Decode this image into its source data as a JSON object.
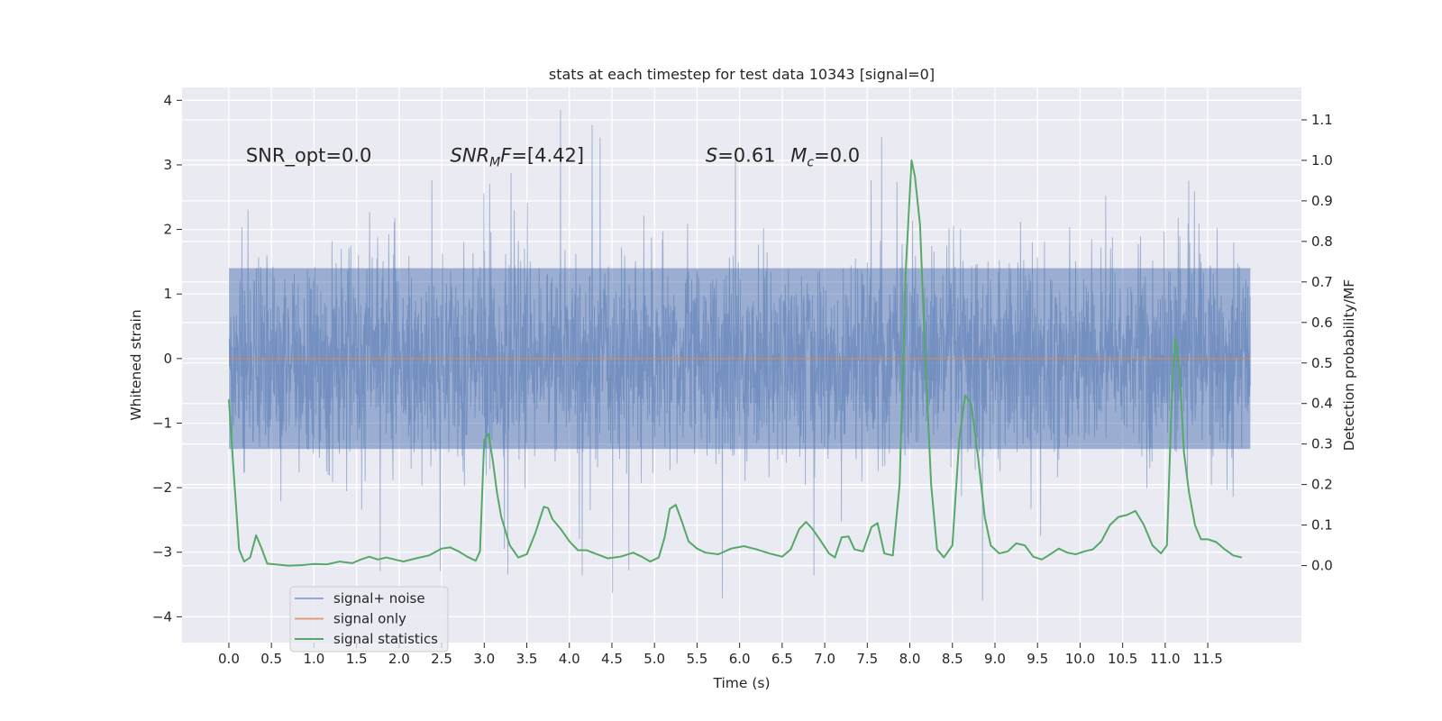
{
  "chart_data": {
    "type": "line",
    "title": "stats at each timestep for test data 10343 [signal=0]",
    "xlabel": "Time (s)",
    "ylabel": "Whitened strain",
    "y2label": "Detection probability/MF",
    "xlim": [
      -0.55,
      12.6
    ],
    "ylim": [
      -4.4,
      4.2
    ],
    "y2lim": [
      -0.19,
      1.18
    ],
    "x_ticks": [
      0.0,
      0.5,
      1.0,
      1.5,
      2.0,
      2.5,
      3.0,
      3.5,
      4.0,
      4.5,
      5.0,
      5.5,
      6.0,
      6.5,
      7.0,
      7.5,
      8.0,
      8.5,
      9.0,
      9.5,
      10.0,
      10.5,
      11.0,
      11.5
    ],
    "x_tick_labels": [
      "0.0",
      "0.5",
      "1.0",
      "1.5",
      "2.0",
      "2.5",
      "3.0",
      "3.5",
      "4.0",
      "4.5",
      "5.0",
      "5.5",
      "6.0",
      "6.5",
      "7.0",
      "7.5",
      "8.0",
      "8.5",
      "9.0",
      "9.5",
      "10.0",
      "10.5",
      "11.0",
      "11.5"
    ],
    "y_ticks": [
      -4,
      -3,
      -2,
      -1,
      0,
      1,
      2,
      3,
      4
    ],
    "y_tick_labels": [
      "−4",
      "−3",
      "−2",
      "−1",
      "0",
      "1",
      "2",
      "3",
      "4"
    ],
    "y2_ticks": [
      0.0,
      0.1,
      0.2,
      0.3,
      0.4,
      0.5,
      0.6,
      0.7,
      0.8,
      0.9,
      1.0,
      1.1
    ],
    "y2_tick_labels": [
      "0.0",
      "0.1",
      "0.2",
      "0.3",
      "0.4",
      "0.5",
      "0.6",
      "0.7",
      "0.8",
      "0.9",
      "1.0",
      "1.1"
    ],
    "grid": true,
    "legend_position": "lower-left",
    "annotations": [
      {
        "text": "SNR_opt=0.0",
        "x": 0.2,
        "y": 3.05
      },
      {
        "text": "SNR_MF=[4.42]",
        "x": 2.6,
        "y": 3.05
      },
      {
        "text": "S=0.61",
        "x": 5.6,
        "y": 3.05
      },
      {
        "text": "M_c=0.0",
        "x": 6.6,
        "y": 3.05
      }
    ],
    "noise_envelope": {
      "t_start": 0.0,
      "t_end": 12.0,
      "dense_band": [
        -1.4,
        1.4
      ],
      "max_abs_value": 3.85
    },
    "series": [
      {
        "name": "signal+ noise",
        "axis": "left",
        "color": "#4c72b0",
        "kind": "strain-noise",
        "description_values": {
          "t_start": 0.0,
          "t_end": 12.0
        }
      },
      {
        "name": "signal only",
        "axis": "left",
        "color": "#dd8452",
        "x": [
          0.0,
          12.0
        ],
        "y": [
          0.0,
          0.0
        ]
      },
      {
        "name": "signal statistics",
        "axis": "right",
        "color": "#55a868",
        "x": [
          0.0,
          0.06,
          0.12,
          0.18,
          0.25,
          0.32,
          0.38,
          0.45,
          0.55,
          0.7,
          0.85,
          1.0,
          1.15,
          1.3,
          1.45,
          1.55,
          1.65,
          1.75,
          1.85,
          1.95,
          2.05,
          2.2,
          2.35,
          2.5,
          2.6,
          2.7,
          2.8,
          2.9,
          2.95,
          3.0,
          3.05,
          3.1,
          3.15,
          3.2,
          3.3,
          3.4,
          3.5,
          3.6,
          3.7,
          3.75,
          3.8,
          3.9,
          4.0,
          4.1,
          4.2,
          4.3,
          4.45,
          4.6,
          4.75,
          4.85,
          4.95,
          5.05,
          5.12,
          5.18,
          5.25,
          5.32,
          5.4,
          5.5,
          5.6,
          5.75,
          5.9,
          6.05,
          6.2,
          6.35,
          6.5,
          6.6,
          6.7,
          6.78,
          6.85,
          6.95,
          7.05,
          7.12,
          7.2,
          7.28,
          7.35,
          7.45,
          7.55,
          7.62,
          7.7,
          7.8,
          7.88,
          7.95,
          8.02,
          8.06,
          8.12,
          8.18,
          8.25,
          8.32,
          8.4,
          8.5,
          8.58,
          8.65,
          8.72,
          8.8,
          8.88,
          8.95,
          9.05,
          9.15,
          9.25,
          9.35,
          9.45,
          9.55,
          9.65,
          9.75,
          9.85,
          9.95,
          10.05,
          10.15,
          10.25,
          10.35,
          10.45,
          10.55,
          10.65,
          10.75,
          10.85,
          10.95,
          11.02,
          11.08,
          11.12,
          11.17,
          11.22,
          11.28,
          11.35,
          11.42,
          11.5,
          11.6,
          11.7,
          11.8,
          11.9
        ],
        "y": [
          0.41,
          0.22,
          0.04,
          0.01,
          0.02,
          0.075,
          0.045,
          0.005,
          0.003,
          0.0,
          0.001,
          0.004,
          0.003,
          0.01,
          0.006,
          0.015,
          0.022,
          0.015,
          0.02,
          0.015,
          0.01,
          0.018,
          0.025,
          0.042,
          0.045,
          0.035,
          0.022,
          0.012,
          0.035,
          0.31,
          0.325,
          0.26,
          0.18,
          0.12,
          0.05,
          0.02,
          0.028,
          0.08,
          0.145,
          0.142,
          0.115,
          0.09,
          0.06,
          0.038,
          0.038,
          0.03,
          0.018,
          0.022,
          0.032,
          0.022,
          0.01,
          0.02,
          0.07,
          0.14,
          0.15,
          0.11,
          0.06,
          0.042,
          0.032,
          0.028,
          0.042,
          0.048,
          0.04,
          0.03,
          0.022,
          0.04,
          0.09,
          0.108,
          0.092,
          0.062,
          0.03,
          0.02,
          0.07,
          0.072,
          0.04,
          0.035,
          0.095,
          0.105,
          0.03,
          0.025,
          0.2,
          0.72,
          1.0,
          0.96,
          0.84,
          0.52,
          0.2,
          0.04,
          0.02,
          0.05,
          0.31,
          0.42,
          0.4,
          0.27,
          0.12,
          0.05,
          0.03,
          0.035,
          0.055,
          0.05,
          0.022,
          0.015,
          0.028,
          0.042,
          0.032,
          0.028,
          0.035,
          0.04,
          0.06,
          0.1,
          0.12,
          0.125,
          0.135,
          0.1,
          0.05,
          0.03,
          0.05,
          0.43,
          0.56,
          0.48,
          0.28,
          0.18,
          0.1,
          0.065,
          0.065,
          0.058,
          0.04,
          0.025,
          0.02
        ]
      }
    ]
  }
}
